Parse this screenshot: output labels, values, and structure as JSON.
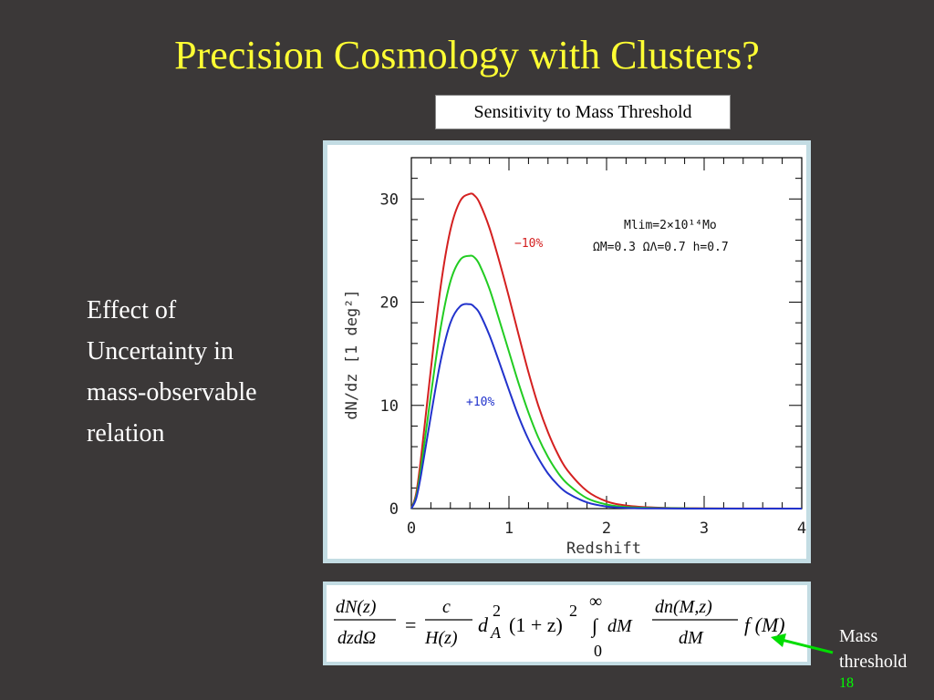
{
  "slide": {
    "title": "Precision Cosmology with Clusters?",
    "chart_label": "Sensitivity to Mass Threshold",
    "side_text": [
      "Effect of",
      "Uncertainty in",
      "mass-observable",
      "relation"
    ],
    "annotation": [
      "Mass",
      "threshold"
    ],
    "slide_number": "18",
    "colors": {
      "background": "#3b3838",
      "title": "#ffff33",
      "text": "#ffffff",
      "slide_number": "#00ff00",
      "frame": "#c3dce3",
      "arrow": "#00dd00"
    }
  },
  "equation": {
    "lhs_num": "dN(z)",
    "lhs_den": "dzdΩ",
    "equals": "=",
    "frac1_num": "c",
    "frac1_den": "H(z)",
    "dA": "d",
    "dA_sub": "A",
    "dA_sup": "2",
    "paren": "(1 + z)",
    "paren_sup": "2",
    "int_upper": "∞",
    "int_lower": "0",
    "int_sign": "∫",
    "dM": "dM",
    "frac2_num": "dn(M,z)",
    "frac2_den": "dM",
    "fM": "f (M)"
  },
  "chart_data": {
    "type": "line",
    "xlabel": "Redshift",
    "ylabel": "dN/dz [1 deg²]",
    "xlim": [
      0,
      4
    ],
    "ylim": [
      0,
      34
    ],
    "xticks": [
      0,
      1,
      2,
      3,
      4
    ],
    "yticks": [
      0,
      10,
      20,
      30
    ],
    "grid": false,
    "annotations": {
      "params_line1": "Mlim=2×10¹⁴Mo",
      "params_line2": "ΩM=0.3  ΩΛ=0.7  h=0.7",
      "minus_label": "−10%",
      "plus_label": "+10%"
    },
    "series": [
      {
        "name": "−10%",
        "color": "#d42020",
        "x": [
          0,
          0.05,
          0.1,
          0.2,
          0.3,
          0.4,
          0.5,
          0.6,
          0.65,
          0.7,
          0.8,
          0.9,
          1.0,
          1.1,
          1.2,
          1.3,
          1.4,
          1.5,
          1.6,
          1.8,
          2.0,
          2.2,
          2.5,
          3.0,
          3.5,
          4.0
        ],
        "values": [
          0,
          1.5,
          5,
          13.5,
          21.5,
          27,
          29.8,
          30.5,
          30.3,
          29.6,
          27.2,
          24,
          20.5,
          16.8,
          13.2,
          10,
          7.4,
          5.3,
          3.7,
          1.7,
          0.7,
          0.3,
          0.1,
          0.02,
          0.01,
          0
        ]
      },
      {
        "name": "",
        "color": "#22cc22",
        "x": [
          0,
          0.05,
          0.1,
          0.2,
          0.3,
          0.4,
          0.5,
          0.6,
          0.65,
          0.7,
          0.8,
          0.9,
          1.0,
          1.1,
          1.2,
          1.3,
          1.4,
          1.5,
          1.6,
          1.8,
          2.0,
          2.2,
          2.5,
          3.0,
          3.5,
          4.0
        ],
        "values": [
          0,
          1.2,
          4,
          11,
          17.5,
          22,
          24.1,
          24.5,
          24.3,
          23.6,
          21.3,
          18.3,
          15.2,
          12.1,
          9.3,
          6.9,
          5,
          3.5,
          2.4,
          1,
          0.4,
          0.15,
          0.05,
          0.01,
          0,
          0
        ]
      },
      {
        "name": "+10%",
        "color": "#2233cc",
        "x": [
          0,
          0.05,
          0.1,
          0.2,
          0.3,
          0.4,
          0.5,
          0.6,
          0.65,
          0.7,
          0.8,
          0.9,
          1.0,
          1.1,
          1.2,
          1.3,
          1.4,
          1.5,
          1.6,
          1.8,
          2.0,
          2.2,
          2.5,
          3.0,
          3.5,
          4.0
        ],
        "values": [
          0,
          1,
          3.3,
          9,
          14.3,
          18,
          19.6,
          19.8,
          19.5,
          18.9,
          16.8,
          14.2,
          11.5,
          8.9,
          6.7,
          4.9,
          3.4,
          2.3,
          1.5,
          0.6,
          0.2,
          0.07,
          0.02,
          0,
          0,
          0
        ]
      }
    ]
  }
}
